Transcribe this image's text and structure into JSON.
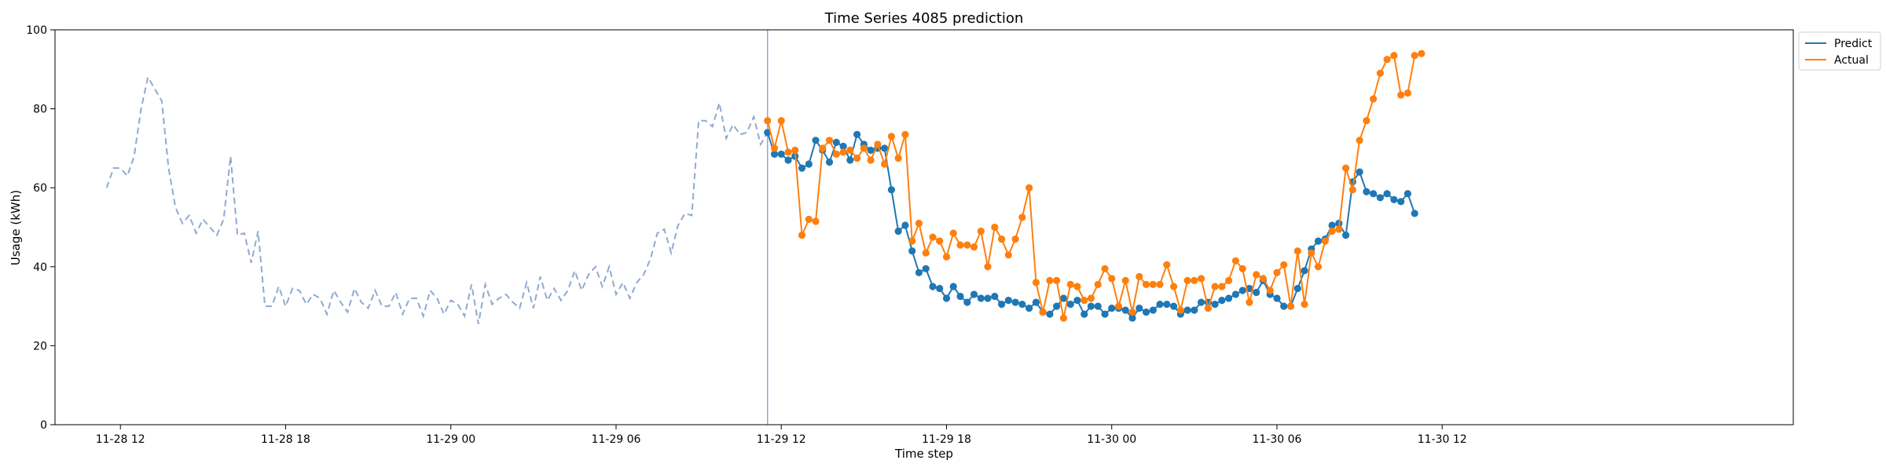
{
  "chart_data": {
    "type": "line",
    "title": "Time Series 4085 prediction",
    "xlabel": "Time step",
    "ylabel": "Usage (kWh)",
    "ylim": [
      0,
      100
    ],
    "yticks": [
      0,
      20,
      40,
      60,
      80,
      100
    ],
    "xlim": [
      -9.5,
      243
    ],
    "xticks": [
      {
        "label": "11-28 12",
        "step": 0
      },
      {
        "label": "11-28 18",
        "step": 24
      },
      {
        "label": "11-29 00",
        "step": 48
      },
      {
        "label": "11-29 06",
        "step": 72
      },
      {
        "label": "11-29 12",
        "step": 96
      },
      {
        "label": "11-29 18",
        "step": 120
      },
      {
        "label": "11-30 00",
        "step": 144
      },
      {
        "label": "11-30 06",
        "step": 168
      },
      {
        "label": "11-30 12",
        "step": 192
      }
    ],
    "forecast_start_step": 94,
    "legend": {
      "position": "top-right"
    },
    "colors": {
      "predict": "#1f77b4",
      "actual": "#ff7f0e",
      "history": "#8faacf",
      "forecast_line": "#8faacf"
    },
    "history": {
      "name": "",
      "start_step": -2,
      "values": [
        60.0,
        65.0,
        65.0,
        63.0,
        68.0,
        80.0,
        88.0,
        85.0,
        82.0,
        65.0,
        55.0,
        51.0,
        53.0,
        48.5,
        52.0,
        50.0,
        48.0,
        52.0,
        68.0,
        48.0,
        48.5,
        41.0,
        49.0,
        30.0,
        30.0,
        35.0,
        30.0,
        34.5,
        34.0,
        30.5,
        33.0,
        32.0,
        28.0,
        34.0,
        31.0,
        28.5,
        34.5,
        31.0,
        29.5,
        34.0,
        30.0,
        30.0,
        33.5,
        28.0,
        32.0,
        32.0,
        27.5,
        34.0,
        32.0,
        28.0,
        31.5,
        30.5,
        27.5,
        35.5,
        25.5,
        35.5,
        30.5,
        32.0,
        33.0,
        31.0,
        29.5,
        36.0,
        29.5,
        37.5,
        31.5,
        34.5,
        31.5,
        34.0,
        39.0,
        34.0,
        38.0,
        40.0,
        35.0,
        40.0,
        33.0,
        36.0,
        32.0,
        36.0,
        38.0,
        42.0,
        48.5,
        49.5,
        43.5,
        50.5,
        53.5,
        53.0,
        77.0,
        77.0,
        75.5,
        81.5,
        72.5,
        76.0,
        73.5,
        74.0,
        78.0,
        71.0,
        74.0
      ]
    },
    "series": [
      {
        "name": "Predict",
        "start_step": 94,
        "values": [
          74.0,
          68.5,
          68.5,
          67.0,
          68.0,
          65.0,
          66.0,
          72.0,
          69.5,
          66.5,
          71.5,
          70.5,
          67.0,
          73.5,
          71.0,
          69.5,
          70.0,
          70.0,
          59.5,
          49.0,
          50.5,
          44.0,
          38.5,
          39.5,
          35.0,
          34.5,
          32.0,
          35.0,
          32.5,
          31.0,
          33.0,
          32.0,
          32.0,
          32.5,
          30.5,
          31.5,
          31.0,
          30.5,
          29.5,
          31.0,
          28.5,
          28.0,
          30.0,
          32.0,
          30.5,
          31.5,
          28.0,
          30.0,
          30.0,
          28.0,
          29.5,
          29.5,
          29.0,
          27.0,
          29.5,
          28.5,
          29.0,
          30.5,
          30.5,
          30.0,
          28.0,
          29.0,
          29.0,
          31.0,
          31.0,
          30.5,
          31.5,
          32.0,
          33.0,
          34.0,
          34.5,
          33.5,
          36.5,
          33.0,
          32.0,
          30.0,
          30.0,
          34.5,
          39.0,
          44.5,
          46.5,
          47.0,
          50.5,
          51.0,
          48.0,
          61.5,
          64.0,
          59.0,
          58.5,
          57.5,
          58.5,
          57.0,
          56.5,
          58.5,
          53.5
        ]
      },
      {
        "name": "Actual",
        "start_step": 94,
        "values": [
          77.0,
          70.0,
          77.0,
          69.0,
          69.5,
          48.0,
          52.0,
          51.5,
          70.0,
          72.0,
          68.5,
          69.0,
          69.5,
          67.5,
          70.0,
          67.0,
          71.0,
          66.0,
          73.0,
          67.5,
          73.5,
          46.5,
          51.0,
          43.5,
          47.5,
          46.5,
          42.5,
          48.5,
          45.5,
          45.5,
          45.0,
          49.0,
          40.0,
          50.0,
          47.0,
          43.0,
          47.0,
          52.5,
          60.0,
          36.0,
          28.5,
          36.5,
          36.5,
          27.0,
          35.5,
          35.0,
          31.5,
          32.0,
          35.5,
          39.5,
          37.0,
          30.0,
          36.5,
          28.5,
          37.5,
          35.5,
          35.5,
          35.5,
          40.5,
          35.0,
          29.0,
          36.5,
          36.5,
          37.0,
          29.5,
          35.0,
          35.0,
          36.5,
          41.5,
          39.5,
          31.0,
          38.0,
          37.0,
          34.0,
          38.5,
          40.5,
          30.0,
          44.0,
          30.5,
          43.5,
          40.0,
          46.5,
          49.0,
          49.5,
          65.0,
          59.5,
          72.0,
          77.0,
          82.5,
          89.0,
          92.5,
          93.5,
          83.5,
          84.0,
          93.5,
          94.0
        ]
      }
    ]
  }
}
